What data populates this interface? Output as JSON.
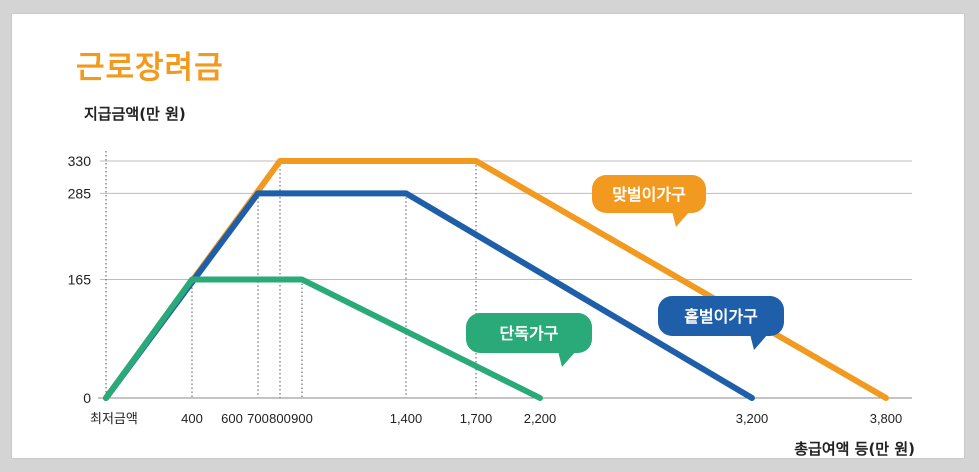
{
  "chart_data": {
    "type": "line",
    "title": "근로장려금",
    "ylabel": "지급금액(만 원)",
    "xlabel": "총급여액 등(만 원)",
    "x_first_tick_label": "최저금액",
    "x_ticks": [
      400,
      600,
      700,
      800,
      900,
      1400,
      1700,
      2200,
      3200,
      3800
    ],
    "x_tick_labels": [
      "400",
      "600",
      "700",
      "800",
      "900",
      "1,400",
      "1,700",
      "2,200",
      "3,200",
      "3,800"
    ],
    "y_ticks": [
      0,
      165,
      285,
      330
    ],
    "y_tick_labels": [
      "0",
      "165",
      "285",
      "330"
    ],
    "grid": "horizontal lines at y ticks, dotted verticals at breakpoints",
    "series": [
      {
        "name": "단독가구",
        "color": "#2baa79",
        "points": [
          [
            0,
            0
          ],
          [
            400,
            165
          ],
          [
            900,
            165
          ],
          [
            2200,
            0
          ]
        ]
      },
      {
        "name": "홑벌이가구",
        "color": "#1f5ea8",
        "points": [
          [
            0,
            0
          ],
          [
            700,
            285
          ],
          [
            1400,
            285
          ],
          [
            3200,
            0
          ]
        ]
      },
      {
        "name": "맞벌이가구",
        "color": "#f29a1f",
        "points": [
          [
            0,
            0
          ],
          [
            800,
            330
          ],
          [
            1700,
            330
          ],
          [
            3800,
            0
          ]
        ]
      }
    ]
  }
}
